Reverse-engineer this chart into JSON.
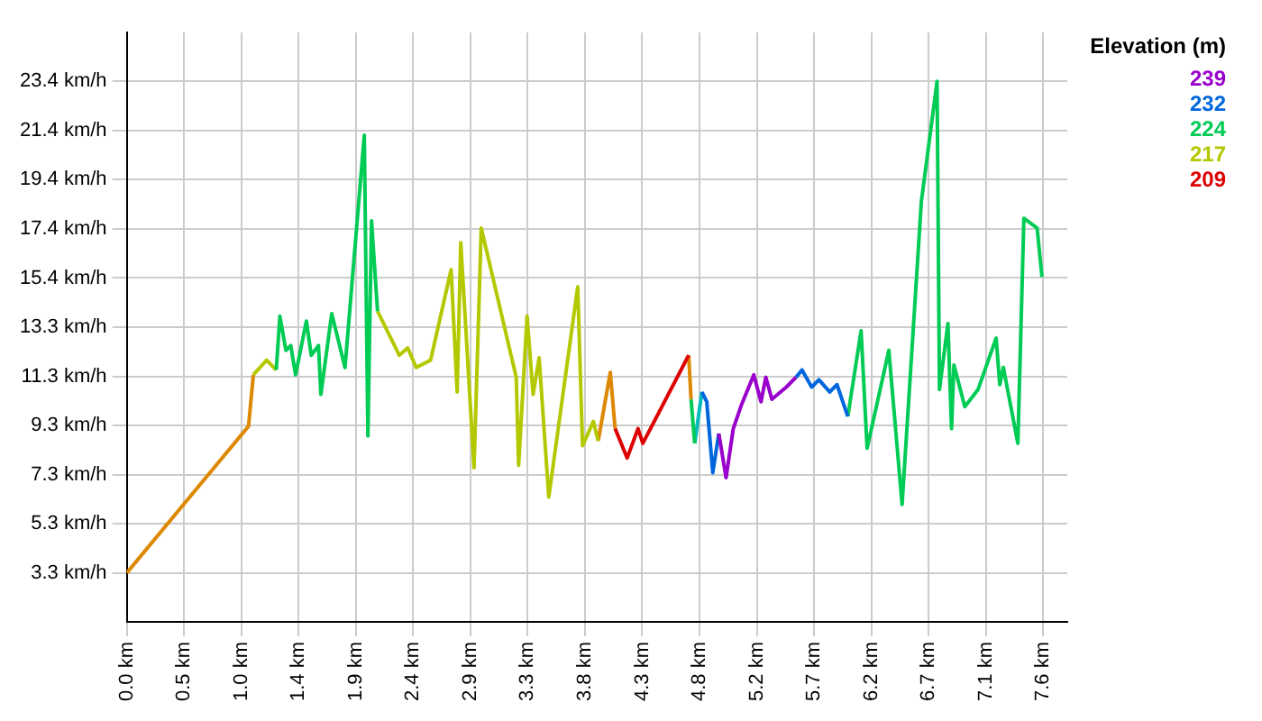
{
  "chart_data": {
    "type": "line",
    "legend_title": "Elevation (m)",
    "legend": "top right",
    "grid": true,
    "marker": "none",
    "line_style": "solid",
    "xlim": [
      0,
      7.8
    ],
    "ylim": [
      1.3,
      25.4
    ],
    "xticks": [
      {
        "value": 0,
        "label": "0.0 km"
      },
      {
        "value": 0.475,
        "label": "0.5 km"
      },
      {
        "value": 0.95,
        "label": "1.0 km"
      },
      {
        "value": 1.425,
        "label": "1.4 km"
      },
      {
        "value": 1.9,
        "label": "1.9 km"
      },
      {
        "value": 2.375,
        "label": "2.4 km"
      },
      {
        "value": 2.85,
        "label": "2.9 km"
      },
      {
        "value": 3.325,
        "label": "3.3 km"
      },
      {
        "value": 3.8,
        "label": "3.8 km"
      },
      {
        "value": 4.275,
        "label": "4.3 km"
      },
      {
        "value": 4.75,
        "label": "4.8 km"
      },
      {
        "value": 5.225,
        "label": "5.2 km"
      },
      {
        "value": 5.7,
        "label": "5.7 km"
      },
      {
        "value": 6.175,
        "label": "6.2 km"
      },
      {
        "value": 6.65,
        "label": "6.7 km"
      },
      {
        "value": 7.125,
        "label": "7.1 km"
      },
      {
        "value": 7.6,
        "label": "7.6 km"
      }
    ],
    "yticks": [
      {
        "value": 3.3,
        "label": "3.3 km/h"
      },
      {
        "value": 5.31,
        "label": "5.3 km/h"
      },
      {
        "value": 7.32,
        "label": "7.3 km/h"
      },
      {
        "value": 9.33,
        "label": "9.3 km/h"
      },
      {
        "value": 11.34,
        "label": "11.3 km/h"
      },
      {
        "value": 13.35,
        "label": "13.3 km/h"
      },
      {
        "value": 15.36,
        "label": "15.4 km/h"
      },
      {
        "value": 17.37,
        "label": "17.4 km/h"
      },
      {
        "value": 19.38,
        "label": "19.4 km/h"
      },
      {
        "value": 21.39,
        "label": "21.4 km/h"
      },
      {
        "value": 23.4,
        "label": "23.4 km/h"
      }
    ],
    "series": [
      {
        "name": "239",
        "color": "#9900cc",
        "x": [
          4.91,
          4.97,
          5.03,
          5.1,
          5.2,
          5.26,
          5.3,
          5.35,
          5.47,
          5.55
        ],
        "values": [
          9.0,
          7.2,
          9.2,
          10.2,
          11.4,
          10.3,
          11.3,
          10.4,
          10.9,
          11.3
        ]
      },
      {
        "name": "232",
        "color": "#0066dd",
        "x": [
          4.77,
          4.81,
          4.86,
          4.91,
          5.2,
          5.55,
          5.6,
          5.68,
          5.74,
          5.83,
          5.89,
          5.98
        ],
        "values": [
          10.7,
          10.3,
          7.4,
          9.0,
          null,
          11.3,
          11.6,
          10.9,
          11.2,
          10.7,
          11.0,
          9.7
        ]
      },
      {
        "name": "224",
        "color": "#00cc55",
        "x": [
          1.24,
          1.27,
          1.32,
          1.36,
          1.4,
          1.49,
          1.53,
          1.59,
          1.61,
          1.7,
          1.81,
          1.97,
          2.0,
          2.03,
          2.08,
          3.4,
          4.68,
          4.71,
          5.3,
          5.98,
          6.09,
          6.14,
          6.32,
          6.43,
          6.59,
          6.72,
          6.74,
          6.81,
          6.84,
          6.86,
          6.95,
          7.06,
          7.21,
          7.24,
          7.27,
          7.39,
          7.44,
          7.55,
          7.59
        ],
        "values": [
          11.6,
          13.8,
          12.4,
          12.6,
          11.4,
          13.6,
          12.2,
          12.6,
          10.6,
          13.9,
          11.7,
          21.2,
          8.9,
          17.7,
          14.0,
          null,
          10.4,
          8.6,
          null,
          9.7,
          13.2,
          8.4,
          12.4,
          6.1,
          18.5,
          23.4,
          10.8,
          13.5,
          9.2,
          11.8,
          10.1,
          10.8,
          12.9,
          11.0,
          11.7,
          8.6,
          17.8,
          17.4,
          15.4
        ]
      },
      {
        "name": "217",
        "color": "#b4c800",
        "x": [
          1.05,
          1.16,
          1.24,
          1.6,
          2.08,
          2.26,
          2.33,
          2.4,
          2.52,
          2.69,
          2.74,
          2.77,
          2.88,
          2.94,
          3.23,
          3.25,
          3.32,
          3.37,
          3.42,
          3.5,
          3.74,
          3.78,
          3.87,
          3.91
        ],
        "values": [
          11.4,
          12.0,
          11.6,
          null,
          14.0,
          12.2,
          12.5,
          11.7,
          12.0,
          15.7,
          10.7,
          16.8,
          7.6,
          17.4,
          11.3,
          7.7,
          13.8,
          10.6,
          12.1,
          6.4,
          15.0,
          8.5,
          9.5,
          8.7
        ]
      },
      {
        "name": "209",
        "color": "#dd0000",
        "x": [
          4.05,
          4.15,
          4.24,
          4.28,
          4.66
        ],
        "values": [
          9.2,
          8.0,
          9.2,
          8.6,
          12.2
        ]
      },
      {
        "color": "#dd8800",
        "x": [
          0,
          1.01,
          1.05,
          2.5,
          3.91,
          4.01,
          4.05,
          4.3,
          4.66,
          4.68
        ],
        "values": [
          3.3,
          9.3,
          11.4,
          null,
          8.7,
          11.5,
          9.2,
          null,
          12.2,
          10.4
        ]
      },
      {
        "color": "#00bbbb",
        "x": [
          4.71,
          4.77
        ],
        "values": [
          8.6,
          10.7
        ]
      }
    ]
  }
}
